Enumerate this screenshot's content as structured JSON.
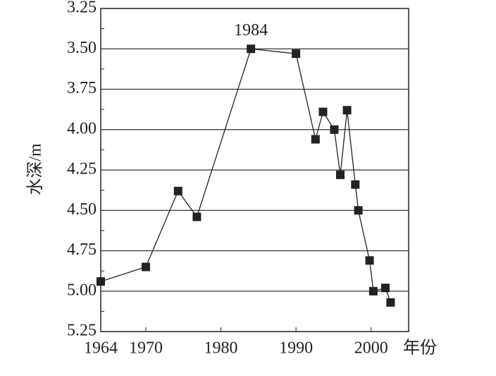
{
  "chart_data": {
    "type": "line",
    "x_label": "年份",
    "y_label": "水深/m",
    "annotation": "1984",
    "x": [
      1964,
      1970,
      1974.3,
      1976.8,
      1984,
      1990,
      1992.6,
      1993.6,
      1995.1,
      1995.9,
      1996.8,
      1997.9,
      1998.3,
      1999.8,
      2000.3,
      2001.9,
      2002.6
    ],
    "values": [
      4.94,
      4.85,
      4.38,
      4.54,
      3.5,
      3.53,
      4.06,
      3.89,
      4.0,
      4.28,
      3.88,
      4.34,
      4.5,
      4.81,
      5.0,
      4.98,
      5.07
    ],
    "color": "#222222",
    "xlim": [
      1964,
      2005
    ],
    "xticks": [
      1964,
      1970,
      1980,
      1990,
      2000
    ],
    "ylim": [
      3.25,
      5.25
    ],
    "y_reversed": true,
    "yticks": [
      3.25,
      {
        "value": 3.5,
        "label": "3.50"
      },
      3.75,
      {
        "value": 4,
        "label": "4.00"
      },
      4.25,
      {
        "value": 4.5,
        "label": "4.50"
      },
      4.75,
      {
        "value": 5,
        "label": "5.00"
      },
      5.25
    ],
    "grid": true
  }
}
